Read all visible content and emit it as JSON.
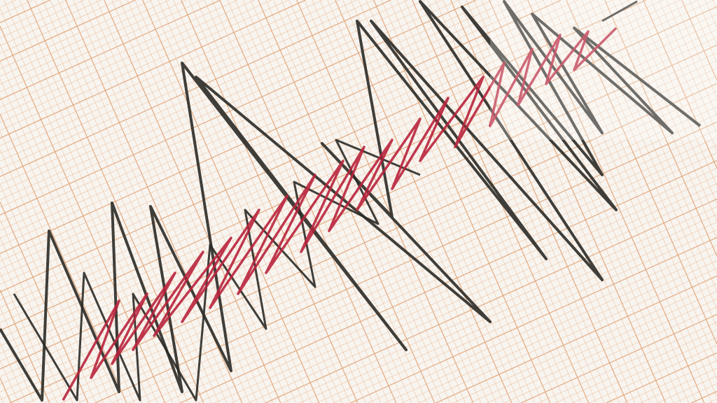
{
  "image": {
    "subject": "seismograph",
    "colors": {
      "paper": "#f8f4ef",
      "grid": "#e0a070",
      "trace_dark": "#2a2a26",
      "trace_red": "#b8243c"
    }
  }
}
